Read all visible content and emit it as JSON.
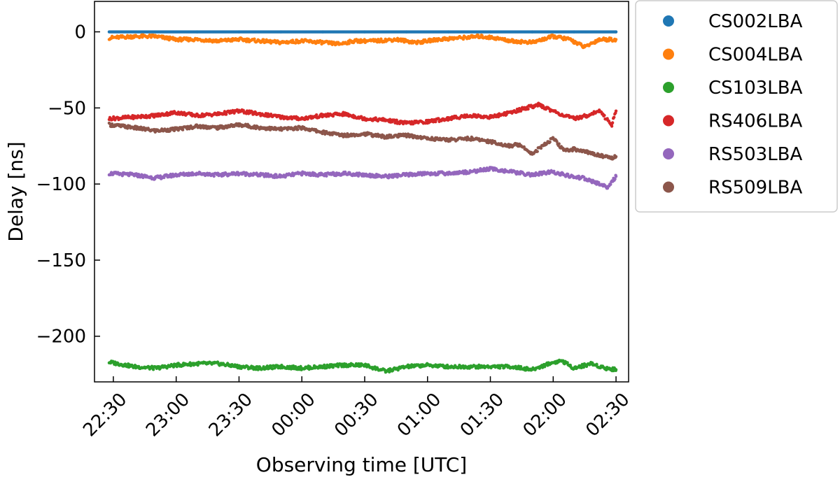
{
  "chart_data": {
    "type": "scatter",
    "title": "",
    "xlabel": "Observing time [UTC]",
    "ylabel": "Delay [ns]",
    "x_tick_labels": [
      "22:30",
      "23:00",
      "23:30",
      "00:00",
      "00:30",
      "01:00",
      "01:30",
      "02:00",
      "02:30"
    ],
    "x_tick_values": [
      0,
      30,
      60,
      90,
      120,
      150,
      180,
      210,
      240
    ],
    "xlim": [
      -9,
      246
    ],
    "x_unit": "minutes after 22:30 UTC",
    "y_ticks": [
      0,
      -50,
      -100,
      -150,
      -200
    ],
    "ylim": [
      -230,
      20
    ],
    "grid": false,
    "legend_position": "outside upper right",
    "series": [
      {
        "name": "CS002LBA",
        "color": "#1f77b4",
        "points": [
          [
            -2,
            0
          ],
          [
            20,
            0
          ],
          [
            40,
            0
          ],
          [
            60,
            0
          ],
          [
            80,
            0
          ],
          [
            100,
            0
          ],
          [
            120,
            0
          ],
          [
            140,
            0
          ],
          [
            160,
            0
          ],
          [
            180,
            0
          ],
          [
            200,
            0
          ],
          [
            220,
            0
          ],
          [
            240,
            0
          ]
        ]
      },
      {
        "name": "CS004LBA",
        "color": "#ff7f0e",
        "points": [
          [
            -2,
            -4
          ],
          [
            10,
            -3
          ],
          [
            20,
            -3
          ],
          [
            30,
            -5
          ],
          [
            40,
            -5
          ],
          [
            50,
            -6
          ],
          [
            60,
            -5
          ],
          [
            70,
            -6
          ],
          [
            80,
            -7
          ],
          [
            90,
            -6
          ],
          [
            100,
            -7
          ],
          [
            108,
            -8
          ],
          [
            115,
            -6
          ],
          [
            125,
            -6
          ],
          [
            135,
            -5
          ],
          [
            145,
            -7
          ],
          [
            155,
            -5
          ],
          [
            165,
            -4
          ],
          [
            175,
            -3
          ],
          [
            182,
            -4
          ],
          [
            190,
            -6
          ],
          [
            200,
            -7
          ],
          [
            210,
            -3
          ],
          [
            218,
            -5
          ],
          [
            225,
            -10
          ],
          [
            232,
            -5
          ],
          [
            240,
            -5
          ]
        ]
      },
      {
        "name": "CS103LBA",
        "color": "#2ca02c",
        "points": [
          [
            -2,
            -217
          ],
          [
            10,
            -220
          ],
          [
            20,
            -221
          ],
          [
            30,
            -219
          ],
          [
            40,
            -218
          ],
          [
            50,
            -218
          ],
          [
            60,
            -220
          ],
          [
            70,
            -221
          ],
          [
            80,
            -220
          ],
          [
            90,
            -221
          ],
          [
            100,
            -220
          ],
          [
            110,
            -219
          ],
          [
            120,
            -219
          ],
          [
            130,
            -223
          ],
          [
            140,
            -220
          ],
          [
            150,
            -219
          ],
          [
            160,
            -220
          ],
          [
            170,
            -220
          ],
          [
            180,
            -220
          ],
          [
            190,
            -220
          ],
          [
            200,
            -222
          ],
          [
            208,
            -218
          ],
          [
            214,
            -216
          ],
          [
            220,
            -221
          ],
          [
            228,
            -218
          ],
          [
            235,
            -221
          ],
          [
            240,
            -222
          ]
        ]
      },
      {
        "name": "RS406LBA",
        "color": "#d62728",
        "points": [
          [
            -2,
            -57
          ],
          [
            10,
            -56
          ],
          [
            20,
            -55
          ],
          [
            30,
            -53
          ],
          [
            40,
            -55
          ],
          [
            50,
            -54
          ],
          [
            60,
            -52
          ],
          [
            70,
            -54
          ],
          [
            80,
            -56
          ],
          [
            90,
            -57
          ],
          [
            100,
            -55
          ],
          [
            110,
            -54
          ],
          [
            120,
            -57
          ],
          [
            130,
            -58
          ],
          [
            140,
            -60
          ],
          [
            150,
            -59
          ],
          [
            160,
            -57
          ],
          [
            170,
            -55
          ],
          [
            180,
            -56
          ],
          [
            190,
            -53
          ],
          [
            197,
            -50
          ],
          [
            203,
            -48
          ],
          [
            210,
            -52
          ],
          [
            215,
            -55
          ],
          [
            220,
            -57
          ],
          [
            226,
            -55
          ],
          [
            232,
            -52
          ],
          [
            238,
            -61
          ],
          [
            240,
            -52
          ]
        ]
      },
      {
        "name": "RS503LBA",
        "color": "#9467bd",
        "points": [
          [
            -2,
            -93
          ],
          [
            10,
            -94
          ],
          [
            20,
            -96
          ],
          [
            30,
            -94
          ],
          [
            40,
            -93
          ],
          [
            50,
            -94
          ],
          [
            60,
            -93
          ],
          [
            70,
            -94
          ],
          [
            80,
            -95
          ],
          [
            90,
            -93
          ],
          [
            100,
            -94
          ],
          [
            110,
            -93
          ],
          [
            120,
            -94
          ],
          [
            130,
            -95
          ],
          [
            140,
            -94
          ],
          [
            150,
            -93
          ],
          [
            160,
            -93
          ],
          [
            170,
            -92
          ],
          [
            180,
            -90
          ],
          [
            190,
            -92
          ],
          [
            200,
            -94
          ],
          [
            210,
            -92
          ],
          [
            218,
            -95
          ],
          [
            224,
            -96
          ],
          [
            230,
            -99
          ],
          [
            236,
            -102
          ],
          [
            240,
            -95
          ]
        ]
      },
      {
        "name": "RS509LBA",
        "color": "#8c564b",
        "points": [
          [
            -2,
            -61
          ],
          [
            10,
            -63
          ],
          [
            20,
            -65
          ],
          [
            30,
            -64
          ],
          [
            40,
            -62
          ],
          [
            50,
            -63
          ],
          [
            60,
            -61
          ],
          [
            70,
            -63
          ],
          [
            80,
            -64
          ],
          [
            90,
            -63
          ],
          [
            100,
            -66
          ],
          [
            110,
            -68
          ],
          [
            120,
            -67
          ],
          [
            130,
            -69
          ],
          [
            140,
            -68
          ],
          [
            150,
            -70
          ],
          [
            160,
            -71
          ],
          [
            170,
            -70
          ],
          [
            180,
            -72
          ],
          [
            188,
            -75
          ],
          [
            194,
            -74
          ],
          [
            200,
            -80
          ],
          [
            206,
            -74
          ],
          [
            210,
            -70
          ],
          [
            215,
            -78
          ],
          [
            220,
            -77
          ],
          [
            226,
            -79
          ],
          [
            232,
            -81
          ],
          [
            238,
            -83
          ],
          [
            240,
            -82
          ]
        ]
      }
    ]
  }
}
